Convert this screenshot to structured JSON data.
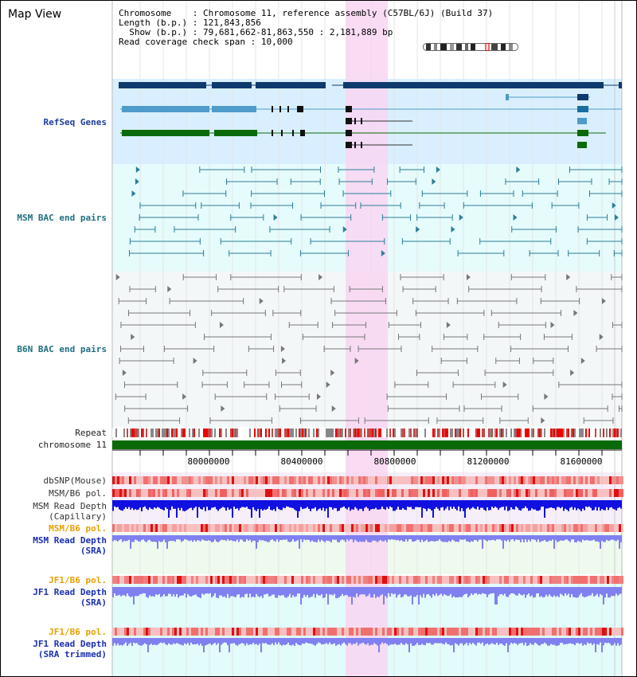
{
  "title": "Map View",
  "info": {
    "chromosome_key": "Chromosome",
    "chromosome_val": "Chromosome 11, reference assembly (C57BL/6J) (Build 37)",
    "length_key": "Length (b.p.)",
    "length_val": "121,843,856",
    "show_key": "Show (b.p.)",
    "show_val": "79,681,662-81,863,550 : 2,181,889 bp",
    "coverage_key": "Read coverage check span",
    "coverage_val": "10,000"
  },
  "tracks": {
    "refseq": "RefSeq Genes",
    "msm_bac": "MSM BAC end pairs",
    "b6n_bac": "B6N BAC end pairs",
    "repeat": "Repeat",
    "chromosome": "chromosome 11",
    "dbsnp": "dbSNP(Mouse)",
    "msm_b6_pol_1": "MSM/B6 pol.",
    "msm_depth_cap_1": "MSM Read Depth",
    "msm_depth_cap_2": "(Capillary)",
    "msm_b6_pol_2": "MSM/B6 pol.",
    "msm_depth_sra_1": "MSM Read Depth",
    "msm_depth_sra_2": "(SRA)",
    "jf1_b6_pol_1": "JF1/B6 pol.",
    "jf1_depth_sra_1": "JF1 Read Depth",
    "jf1_depth_sra_2": "(SRA)",
    "jf1_b6_pol_2": "JF1/B6 pol.",
    "jf1_depth_trim_1": "JF1 Read Depth",
    "jf1_depth_trim_2": "(SRA trimmed)"
  },
  "axis": {
    "ticks": [
      "80000000",
      "80400000",
      "80800000",
      "81200000",
      "81600000"
    ]
  },
  "colors": {
    "highlight": "#f8d6f2",
    "refseq_bg": "#d9efff",
    "bac_bg": "#e6fbfb",
    "gene_navy": "#0f3a6e",
    "gene_light": "#4f9bc9",
    "gene_green": "#0a6a0a",
    "chromosome": "#0a6a0a",
    "depth_capillary": "#1010e0",
    "depth_sra": "#8080f0"
  }
}
